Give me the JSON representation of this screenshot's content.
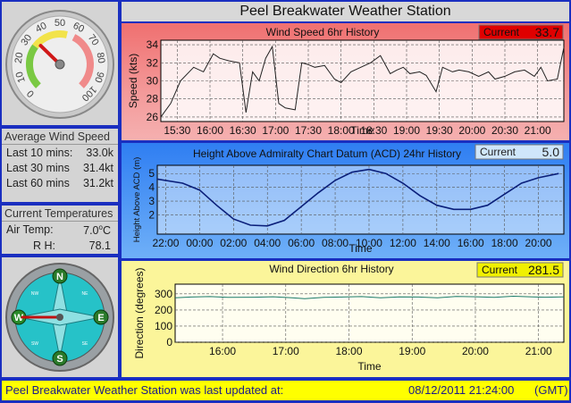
{
  "header": {
    "title": "Peel Breakwater Weather Station"
  },
  "speed_gauge": {
    "ticks": [
      "0",
      "10",
      "20",
      "30",
      "40",
      "50",
      "60",
      "70",
      "80",
      "90",
      "100"
    ],
    "value_kt": 33.0
  },
  "average_wind": {
    "title": "Average Wind Speed",
    "rows": [
      {
        "label": "Last 10 mins:",
        "value": "33.0k"
      },
      {
        "label": "Last 30 mins",
        "value": "31.4kt"
      },
      {
        "label": "Last 60 mins",
        "value": "31.2kt"
      }
    ]
  },
  "temperatures": {
    "title": "Current Temperatures",
    "air_label": "Air Temp:",
    "air_value": "7.0",
    "air_unit": "C",
    "air_degree": "o",
    "rh_label": "R H:",
    "rh_value": "78.1"
  },
  "compass": {
    "points": [
      "N",
      "E",
      "S",
      "W"
    ],
    "minor": [
      "NE",
      "SE",
      "SW",
      "NW"
    ],
    "needle_deg": 270
  },
  "footer": {
    "message": "Peel Breakwater Weather Station was last updated at:",
    "datetime": "08/12/2011 21:24:00",
    "zone": "(GMT)"
  },
  "colors": {
    "wind_bg": "#f07070",
    "height_bg": "#2f7ef2",
    "direction_bg": "#fbf59a",
    "frame": "#1a2fc0",
    "footer": "#ffff00"
  },
  "chart_data": [
    {
      "type": "line",
      "title": "Wind Speed 6hr History",
      "xlabel": "Time",
      "ylabel": "Speed (kts)",
      "current_label": "Current",
      "current_value": "33.7",
      "x_ticks": [
        "15:30",
        "16:00",
        "16:30",
        "17:00",
        "17:30",
        "18:00",
        "18:30",
        "19:00",
        "19:30",
        "20:00",
        "20:30",
        "21:00"
      ],
      "y_ticks": [
        "26",
        "28",
        "30",
        "32",
        "34"
      ],
      "ylim": [
        25.5,
        34.5
      ],
      "xlim": [
        15.25,
        21.4
      ],
      "grid": true,
      "x": [
        15.25,
        15.4,
        15.55,
        15.75,
        15.9,
        16.05,
        16.15,
        16.3,
        16.45,
        16.55,
        16.65,
        16.75,
        16.85,
        16.95,
        17.05,
        17.15,
        17.3,
        17.4,
        17.5,
        17.6,
        17.75,
        17.9,
        18.0,
        18.15,
        18.3,
        18.45,
        18.6,
        18.75,
        18.85,
        18.95,
        19.05,
        19.2,
        19.3,
        19.45,
        19.55,
        19.7,
        19.8,
        19.95,
        20.1,
        20.25,
        20.35,
        20.5,
        20.65,
        20.8,
        20.95,
        21.05,
        21.15,
        21.3,
        21.4
      ],
      "y": [
        26,
        27.5,
        30,
        31.5,
        31,
        33,
        32.5,
        32.2,
        32,
        26.5,
        31,
        30,
        32.5,
        33.8,
        27.5,
        27,
        26.8,
        32,
        31.8,
        31.5,
        31.7,
        30.2,
        29.8,
        31,
        31.5,
        32,
        32.8,
        30.8,
        31.2,
        31.5,
        30.8,
        31,
        30.6,
        28.8,
        31.5,
        31,
        31.2,
        31,
        30.5,
        31,
        30.2,
        30.5,
        31,
        31.2,
        30.5,
        31.5,
        30,
        30.2,
        33.7
      ]
    },
    {
      "type": "line",
      "title": "Height Above Admiralty Chart Datum (ACD) 24hr History",
      "xlabel": "Time",
      "ylabel": "Height Above ACD (m)",
      "current_label": "Current",
      "current_value": "5.0",
      "x_ticks": [
        "22:00",
        "00:00",
        "02:00",
        "04:00",
        "06:00",
        "08:00",
        "10:00",
        "12:00",
        "14:00",
        "16:00",
        "18:00",
        "20:00"
      ],
      "y_ticks": [
        "2",
        "3",
        "4",
        "5"
      ],
      "ylim": [
        0.6,
        5.6
      ],
      "xlim": [
        -2.5,
        21.5
      ],
      "grid": true,
      "x": [
        -2.5,
        -1,
        0,
        1,
        2,
        3,
        4,
        5,
        6,
        7,
        8,
        9,
        10,
        11,
        12,
        13,
        14,
        15,
        16,
        17,
        18,
        19,
        20,
        21.2
      ],
      "y": [
        4.6,
        4.3,
        3.8,
        2.7,
        1.7,
        1.25,
        1.2,
        1.6,
        2.6,
        3.6,
        4.5,
        5.1,
        5.3,
        5.0,
        4.3,
        3.4,
        2.7,
        2.4,
        2.4,
        2.7,
        3.5,
        4.3,
        4.7,
        5.0
      ]
    },
    {
      "type": "line",
      "title": "Wind Direction 6hr History",
      "xlabel": "Time",
      "ylabel": "Direction (degrees)",
      "current_label": "Current",
      "current_value": "281.5",
      "x_ticks": [
        "16:00",
        "17:00",
        "18:00",
        "19:00",
        "20:00",
        "21:00"
      ],
      "y_ticks": [
        "0",
        "100",
        "200",
        "300"
      ],
      "ylim": [
        0,
        360
      ],
      "xlim": [
        15.25,
        21.4
      ],
      "grid": true,
      "x": [
        15.25,
        15.5,
        15.8,
        16.1,
        16.5,
        16.8,
        17.1,
        17.3,
        17.6,
        17.9,
        18.2,
        18.5,
        18.8,
        19.1,
        19.4,
        19.7,
        20.0,
        20.3,
        20.6,
        20.9,
        21.1,
        21.4
      ],
      "y": [
        275,
        280,
        283,
        278,
        279,
        282,
        276,
        270,
        278,
        280,
        283,
        276,
        281,
        280,
        275,
        284,
        282,
        278,
        285,
        281,
        279,
        281.5
      ]
    }
  ]
}
